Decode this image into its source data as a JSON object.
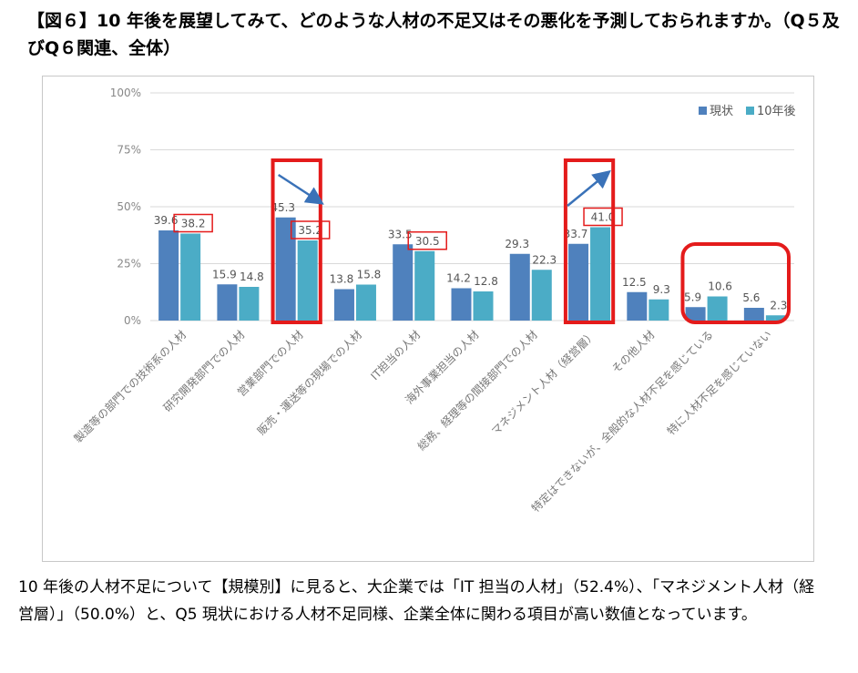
{
  "page": {
    "title": "【図６】10 年後を展望してみて、どのような人材の不足又はその悪化を予測しておられますか。（Q５及びQ６関連、全体）",
    "body_text": "10 年後の人材不足について【規模別】に見ると、大企業では「IT 担当の人材」（52.4%）、「マネジメント人材（経営層）」（50.0%）と、Q5 現状における人材不足同様、企業全体に関わる項目が高い数値となっています。"
  },
  "colors": {
    "current": "#4f81bd",
    "future": "#4bacc6",
    "highlight": "#e41b1b",
    "arrow": "#3a72b8",
    "grid": "#d9d9d9"
  },
  "chart_data": {
    "type": "bar",
    "title": "",
    "xlabel": "",
    "ylabel": "",
    "ylim": [
      0,
      100
    ],
    "yticks": [
      0,
      25,
      50,
      75,
      100
    ],
    "ytick_labels": [
      "0%",
      "25%",
      "50%",
      "75%",
      "100%"
    ],
    "legend_position": "top-right",
    "categories": [
      "製造等の部門での技術系の人材",
      "研究開発部門での人材",
      "営業部門での人材",
      "販売・運送等の現場での人材",
      "IT担当の人材",
      "海外事業担当の人材",
      "総務、経理等の間接部門での人材",
      "マネジメント人材（経営層）",
      "その他人材",
      "特定はできないが、全般的な人材不足を感じている",
      "特に人材不足を感じていない"
    ],
    "series": [
      {
        "name": "現状",
        "values": [
          39.6,
          15.9,
          45.3,
          13.8,
          33.5,
          14.2,
          29.3,
          33.7,
          12.5,
          5.9,
          5.6
        ],
        "labels": [
          "39.6",
          "15.9",
          "45.3",
          "13.8",
          "33.5",
          "14.2",
          "29.3",
          "33.7",
          "12.5",
          "5.9",
          "5.6"
        ]
      },
      {
        "name": "10年後",
        "values": [
          38.2,
          14.8,
          35.2,
          15.8,
          30.5,
          12.8,
          22.3,
          41.0,
          9.3,
          10.6,
          2.3
        ],
        "labels": [
          "38.2",
          "14.8",
          "35.2",
          "15.8",
          "30.5",
          "12.8",
          "22.3",
          "41.0",
          "9.3",
          "10.6",
          "2.3"
        ]
      }
    ],
    "annotations": {
      "boxed_labels": [
        [
          0,
          1
        ],
        [
          2,
          1
        ],
        [
          4,
          1
        ],
        [
          7,
          1
        ]
      ],
      "highlight_groups": [
        [
          2
        ],
        [
          7
        ],
        [
          9,
          10
        ]
      ],
      "trend_arrows": [
        {
          "category": 2,
          "direction": "down"
        },
        {
          "category": 7,
          "direction": "up"
        }
      ]
    }
  }
}
